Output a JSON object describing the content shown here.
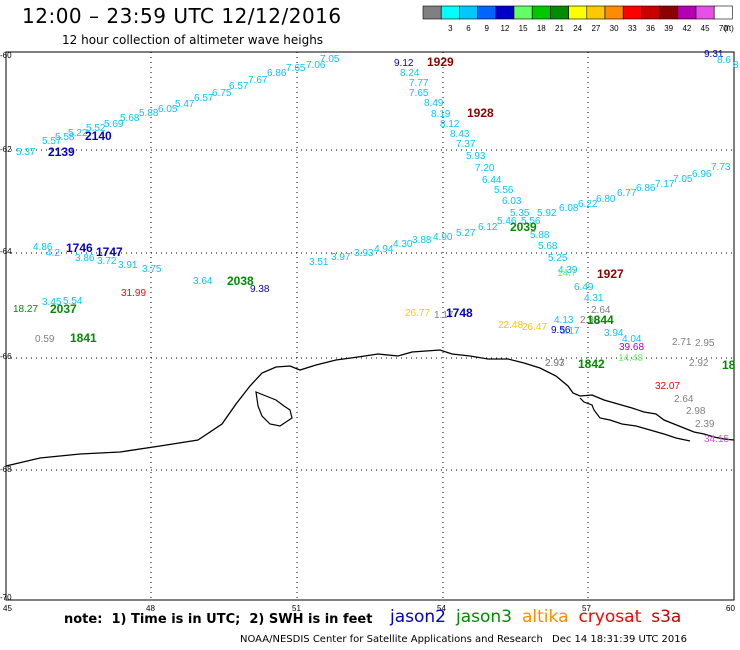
{
  "header": {
    "title": "12:00 – 23:59 UTC 12/12/2016",
    "subtitle": "12 hour collection of altimeter wave heighs"
  },
  "legend": {
    "unit_label": "(ft)",
    "bins": [
      {
        "label": "",
        "color": "#808080"
      },
      {
        "label": "3",
        "color": "#00ffff"
      },
      {
        "label": "6",
        "color": "#00c8ff"
      },
      {
        "label": "9",
        "color": "#0064ff"
      },
      {
        "label": "12",
        "color": "#0000c8"
      },
      {
        "label": "15",
        "color": "#64ff64"
      },
      {
        "label": "18",
        "color": "#00c800"
      },
      {
        "label": "21",
        "color": "#008c00"
      },
      {
        "label": "24",
        "color": "#ffff00"
      },
      {
        "label": "27",
        "color": "#ffc800"
      },
      {
        "label": "30",
        "color": "#ff8c00"
      },
      {
        "label": "33",
        "color": "#ff0000"
      },
      {
        "label": "36",
        "color": "#c80000"
      },
      {
        "label": "39",
        "color": "#8c0000"
      },
      {
        "label": "42",
        "color": "#b400b4"
      },
      {
        "label": "45",
        "color": "#e650e6"
      },
      {
        "label": "70",
        "color": "#ffffff"
      }
    ]
  },
  "axes": {
    "lon_labels": [
      "45",
      "48",
      "51",
      "54",
      "57",
      "60"
    ],
    "lat_labels": [
      "-60",
      "-62",
      "-64",
      "-66",
      "-68",
      "-70"
    ]
  },
  "labels": [
    {
      "t": "9.12",
      "c": "#0000c8"
    },
    {
      "t": "1929",
      "c": "#8c0000",
      "b": true
    },
    {
      "t": "8.24",
      "c": "#00c8ff"
    },
    {
      "t": "7.77",
      "c": "#00c8ff"
    },
    {
      "t": "7.65",
      "c": "#00c8ff"
    },
    {
      "t": "8.49",
      "c": "#00c8ff"
    },
    {
      "t": "8.19",
      "c": "#00c8ff"
    },
    {
      "t": "1928",
      "c": "#8c0000",
      "b": true
    },
    {
      "t": "8.12",
      "c": "#00c8ff"
    },
    {
      "t": "8.43",
      "c": "#00c8ff"
    },
    {
      "t": "7.37",
      "c": "#00c8ff"
    },
    {
      "t": "5.93",
      "c": "#00c8ff"
    },
    {
      "t": "7.20",
      "c": "#00c8ff"
    },
    {
      "t": "6.44",
      "c": "#00c8ff"
    },
    {
      "t": "5.56",
      "c": "#00c8ff"
    },
    {
      "t": "6.03",
      "c": "#00c8ff"
    },
    {
      "t": "5.35",
      "c": "#00c8ff"
    },
    {
      "t": "5.92",
      "c": "#00c8ff"
    },
    {
      "t": "5.46",
      "c": "#00c8ff"
    },
    {
      "t": "5.56",
      "c": "#00c8ff"
    },
    {
      "t": "2039",
      "c": "#008c00",
      "b": true
    },
    {
      "t": "5.88",
      "c": "#00c8ff"
    },
    {
      "t": "5.68",
      "c": "#00c8ff"
    },
    {
      "t": "5.25",
      "c": "#00c8ff"
    },
    {
      "t": "4.39",
      "c": "#00c8ff"
    },
    {
      "t": "14.7",
      "c": "#64ff64"
    },
    {
      "t": "1927",
      "c": "#8c0000",
      "b": true
    },
    {
      "t": "6.49",
      "c": "#00c8ff"
    },
    {
      "t": "4.31",
      "c": "#00c8ff"
    },
    {
      "t": "2.64",
      "c": "#808080"
    },
    {
      "t": "4.13",
      "c": "#00c8ff"
    },
    {
      "t": "2.90",
      "c": "#808080"
    },
    {
      "t": "1844",
      "c": "#008c00",
      "b": true
    },
    {
      "t": "5.17",
      "c": "#00c8ff"
    },
    {
      "t": "3.94",
      "c": "#00c8ff"
    },
    {
      "t": "4.04",
      "c": "#00c8ff"
    },
    {
      "t": "9.56",
      "c": "#0000c8"
    },
    {
      "t": "39.68",
      "c": "#b400b4"
    },
    {
      "t": "2.71",
      "c": "#808080"
    },
    {
      "t": "2.95",
      "c": "#808080"
    },
    {
      "t": "2.93",
      "c": "#808080"
    },
    {
      "t": "1842",
      "c": "#008c00",
      "b": true
    },
    {
      "t": "14.48",
      "c": "#64ff64"
    },
    {
      "t": "2.92",
      "c": "#808080"
    },
    {
      "t": "18",
      "c": "#008c00",
      "b": true
    },
    {
      "t": "32.07",
      "c": "#ff0000"
    },
    {
      "t": "2.64",
      "c": "#808080"
    },
    {
      "t": "2.98",
      "c": "#808080"
    },
    {
      "t": "2.39",
      "c": "#808080"
    },
    {
      "t": "34.15",
      "c": "#e650e6"
    },
    {
      "t": "6.08",
      "c": "#00c8ff"
    },
    {
      "t": "6.22",
      "c": "#00c8ff"
    },
    {
      "t": "6.80",
      "c": "#00c8ff"
    },
    {
      "t": "6.77",
      "c": "#00c8ff"
    },
    {
      "t": "6.86",
      "c": "#00c8ff"
    },
    {
      "t": "7.17",
      "c": "#00c8ff"
    },
    {
      "t": "7.05",
      "c": "#00c8ff"
    },
    {
      "t": "6.96",
      "c": "#00c8ff"
    },
    {
      "t": "7.73",
      "c": "#00c8ff"
    },
    {
      "t": "3.51",
      "c": "#00c8ff"
    },
    {
      "t": "3.97",
      "c": "#00c8ff"
    },
    {
      "t": "3.93",
      "c": "#00c8ff"
    },
    {
      "t": "4.94",
      "c": "#00c8ff"
    },
    {
      "t": "4.30",
      "c": "#00c8ff"
    },
    {
      "t": "3.88",
      "c": "#00c8ff"
    },
    {
      "t": "4.90",
      "c": "#00c8ff"
    },
    {
      "t": "5.27",
      "c": "#00c8ff"
    },
    {
      "t": "6.12",
      "c": "#00c8ff"
    },
    {
      "t": "5.57",
      "c": "#00c8ff"
    },
    {
      "t": "5.58",
      "c": "#00c8ff"
    },
    {
      "t": "5.22",
      "c": "#00c8ff"
    },
    {
      "t": "5.52",
      "c": "#00c8ff"
    },
    {
      "t": "5.69",
      "c": "#00c8ff"
    },
    {
      "t": "5.68",
      "c": "#00c8ff"
    },
    {
      "t": "5.88",
      "c": "#00c8ff"
    },
    {
      "t": "6.05",
      "c": "#00c8ff"
    },
    {
      "t": "5.47",
      "c": "#00c8ff"
    },
    {
      "t": "6.57",
      "c": "#00c8ff"
    },
    {
      "t": "6.75",
      "c": "#00c8ff"
    },
    {
      "t": "6.57",
      "c": "#00c8ff"
    },
    {
      "t": "7.67",
      "c": "#00c8ff"
    },
    {
      "t": "6.86",
      "c": "#00c8ff"
    },
    {
      "t": "7.65",
      "c": "#00c8ff"
    },
    {
      "t": "7.06",
      "c": "#00c8ff"
    },
    {
      "t": "7.05",
      "c": "#00c8ff"
    },
    {
      "t": "5.37",
      "c": "#00c8ff"
    },
    {
      "t": "2139",
      "c": "#0000c8",
      "b": true
    },
    {
      "t": "2140",
      "c": "#0000c8",
      "b": true
    },
    {
      "t": "4.86",
      "c": "#00c8ff"
    },
    {
      "t": "4.2",
      "c": "#00c8ff"
    },
    {
      "t": "1746",
      "c": "#0000c8",
      "b": true
    },
    {
      "t": "3.86",
      "c": "#00c8ff"
    },
    {
      "t": "1747",
      "c": "#0000c8",
      "b": true
    },
    {
      "t": "3.72",
      "c": "#00c8ff"
    },
    {
      "t": "3.91",
      "c": "#00c8ff"
    },
    {
      "t": "3.75",
      "c": "#00c8ff"
    },
    {
      "t": "3.64",
      "c": "#00c8ff"
    },
    {
      "t": "2038",
      "c": "#008c00",
      "b": true
    },
    {
      "t": "9.38",
      "c": "#0000c8"
    },
    {
      "t": "31.99",
      "c": "#ff0000"
    },
    {
      "t": "18.27",
      "c": "#008c00"
    },
    {
      "t": "3.45",
      "c": "#00c8ff"
    },
    {
      "t": "5.54",
      "c": "#00c8ff"
    },
    {
      "t": "2037",
      "c": "#008c00",
      "b": true
    },
    {
      "t": "0.59",
      "c": "#808080"
    },
    {
      "t": "1841",
      "c": "#008c00",
      "b": true
    },
    {
      "t": "26.77",
      "c": "#ffc800"
    },
    {
      "t": "1.17",
      "c": "#808080"
    },
    {
      "t": "1748",
      "c": "#0000c8",
      "b": true
    },
    {
      "t": "22.48",
      "c": "#ffc800"
    },
    {
      "t": "26.47",
      "c": "#ffc800"
    },
    {
      "t": "2.97",
      "c": "#808080"
    },
    {
      "t": "9.31",
      "c": "#0000c8"
    },
    {
      "t": "8.6",
      "c": "#00c8ff"
    },
    {
      "t": "8",
      "c": "#00c8ff"
    }
  ],
  "footer": {
    "note": "note:  1) Time is in UTC;  2) SWH is in feet",
    "satellites": [
      {
        "name": "jason2",
        "color": "#0000c8"
      },
      {
        "name": "jason3",
        "color": "#008c00"
      },
      {
        "name": "altika",
        "color": "#ff8c00"
      },
      {
        "name": "cryosat",
        "color": "#ff0000"
      },
      {
        "name": "s3a",
        "color": "#c80000"
      }
    ],
    "credit": "NOAA/NESDIS Center for Satellite Applications and Research",
    "timestamp": "Dec 14 18:31:39 UTC 2016"
  }
}
